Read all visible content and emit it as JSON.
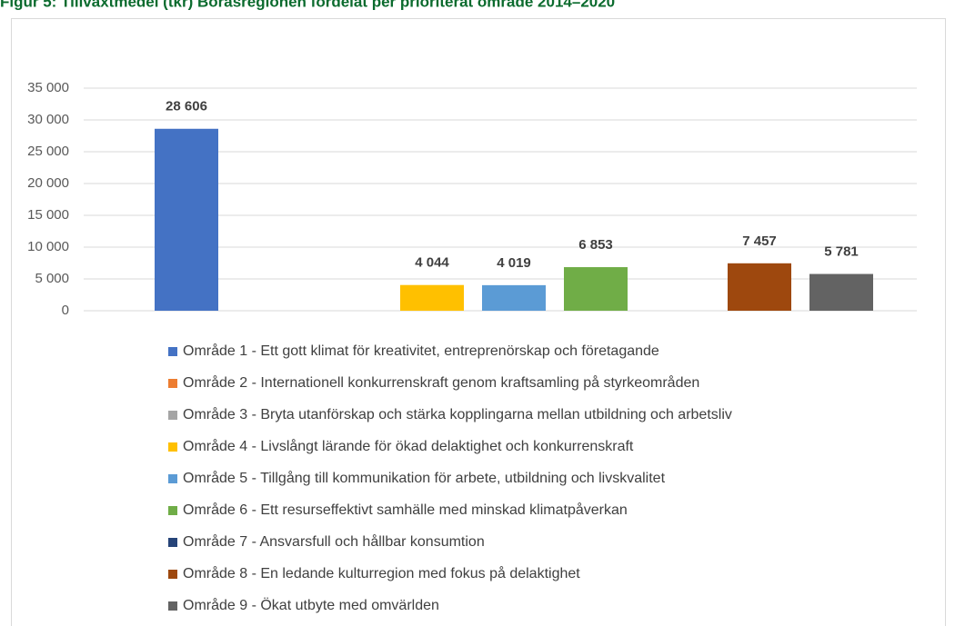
{
  "chart_data": {
    "type": "bar",
    "title": "Figur 5: Tillväxtmedel (tkr) Boråsregionen fördelat per prioriterat område 2014–2020",
    "categories": [
      "Område 1 - Ett gott klimat för kreativitet, entreprenörskap och företagande",
      "Område 2 - Internationell konkurrenskraft genom kraftsamling på styrkeområden",
      "Område 3 - Bryta utanförskap och stärka kopplingarna mellan utbildning och arbetsliv",
      "Område 4 - Livslångt lärande för ökad delaktighet och konkurrenskraft",
      "Område 5 - Tillgång till kommunikation för arbete, utbildning och livskvalitet",
      "Område 6 - Ett resurseffektivt samhälle med minskad klimatpåverkan",
      "Område 7 - Ansvarsfull och hållbar konsumtion",
      "Område 8 - En ledande kulturregion med fokus på delaktighet",
      "Område 9 - Ökat utbyte med omvärlden"
    ],
    "values": [
      28606,
      null,
      null,
      4044,
      4019,
      6853,
      null,
      7457,
      5781
    ],
    "value_labels": [
      "28 606",
      null,
      null,
      "4 044",
      "4 019",
      "6 853",
      null,
      "7 457",
      "5 781"
    ],
    "colors": [
      "#4472c4",
      "#ed7d31",
      "#a5a5a5",
      "#ffc000",
      "#5b9bd5",
      "#70ad47",
      "#264478",
      "#9e480e",
      "#636363"
    ],
    "ylim": [
      0,
      35000
    ],
    "yticks": [
      0,
      {
        "value": 5000,
        "label": "5 000"
      },
      {
        "value": 10000,
        "label": "10 000"
      },
      {
        "value": 15000,
        "label": "15 000"
      },
      {
        "value": 20000,
        "label": "20 000"
      },
      {
        "value": 25000,
        "label": "25 000"
      },
      {
        "value": 30000,
        "label": "30 000"
      },
      {
        "value": 35000,
        "label": "35 000"
      }
    ],
    "grid": true
  }
}
